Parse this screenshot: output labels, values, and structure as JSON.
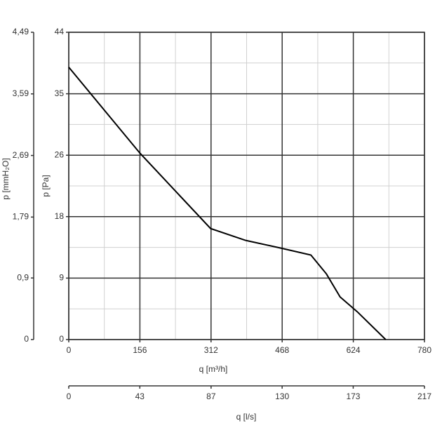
{
  "chart_data": {
    "type": "line",
    "x_label": "q [m³/h]",
    "y_label": "p [Pa]",
    "y2_label": "p [mmH₂O]",
    "x2_label": "q [l/s]",
    "x": [
      0,
      156,
      311,
      388,
      465,
      531,
      565,
      595,
      634,
      695
    ],
    "series": [
      {
        "color": "#000000",
        "values": [
          39,
          26.7,
          15.9,
          14.2,
          13.1,
          12.1,
          9.4,
          6.1,
          3.9,
          0
        ]
      }
    ],
    "xlim": [
      0,
      780
    ],
    "xticks": [
      0,
      156,
      312,
      468,
      624,
      780
    ],
    "x_minor_ticks": [
      78,
      234,
      390,
      546,
      702
    ],
    "ylim": [
      0,
      44
    ],
    "yticks": [
      0,
      {
        "value": 8.8,
        "label": "9"
      },
      {
        "value": 17.6,
        "label": "18"
      },
      {
        "value": 26.4,
        "label": "26"
      },
      {
        "value": 35.2,
        "label": "35"
      },
      44
    ],
    "y_minor_ticks": [
      4.4,
      13.2,
      22,
      30.8,
      39.6
    ],
    "y2lim": [
      0,
      4.49
    ],
    "y2ticks": [
      0,
      {
        "value": 0.9,
        "label": "0,9"
      },
      {
        "value": 1.79,
        "label": "1,79"
      },
      {
        "value": 2.69,
        "label": "2,69"
      },
      {
        "value": 3.59,
        "label": "3,59"
      },
      {
        "value": 4.49,
        "label": "4,49"
      }
    ],
    "x2lim": [
      0,
      216.7
    ],
    "x2ticks": [
      0,
      {
        "value": 43.3,
        "label": "43"
      },
      {
        "value": 86.7,
        "label": "87"
      },
      130,
      {
        "value": 173.3,
        "label": "173"
      },
      {
        "value": 216.7,
        "label": "217"
      }
    ],
    "grid": true,
    "grid_color": "#333333",
    "minor_grid_color": "#d0d0d0"
  }
}
